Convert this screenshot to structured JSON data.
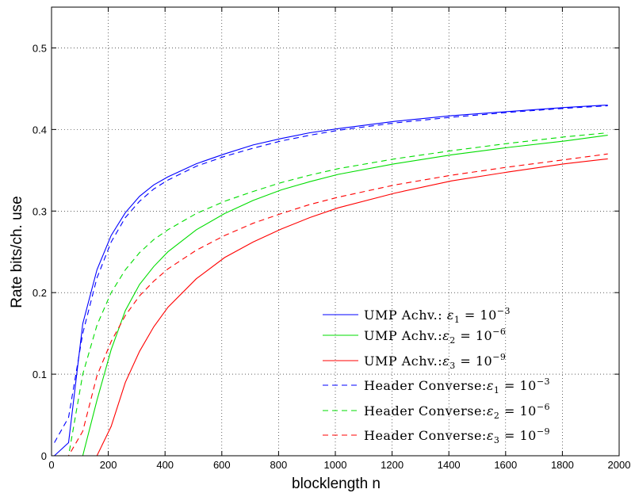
{
  "chart_data": {
    "type": "line",
    "title": "",
    "xlabel": "blocklength n",
    "ylabel": "Rate bits/ch. use",
    "xlim": [
      0,
      2000
    ],
    "ylim": [
      0,
      0.55
    ],
    "xticks": [
      0,
      200,
      400,
      600,
      800,
      1000,
      1200,
      1400,
      1600,
      1800,
      2000
    ],
    "yticks": [
      0,
      0.1,
      0.2,
      0.3,
      0.4,
      0.5
    ],
    "xtick_labels": [
      "0",
      "200",
      "400",
      "600",
      "800",
      "1000",
      "1200",
      "1400",
      "1600",
      "1800",
      "2000"
    ],
    "ytick_labels": [
      "0",
      "0.1",
      "0.2",
      "0.3",
      "0.4",
      "0.5"
    ],
    "grid": true,
    "legend_position": "bottom-right",
    "series": [
      {
        "name": "UMP Achv.: ε1 = 10^-3",
        "color": "#0000ff",
        "dash": "solid",
        "x": [
          10,
          60,
          110,
          160,
          210,
          260,
          310,
          360,
          410,
          510,
          610,
          710,
          810,
          910,
          1010,
          1210,
          1410,
          1610,
          1810,
          1960
        ],
        "y": [
          0.0,
          0.016,
          0.162,
          0.228,
          0.27,
          0.298,
          0.318,
          0.332,
          0.342,
          0.358,
          0.37,
          0.381,
          0.389,
          0.396,
          0.401,
          0.41,
          0.417,
          0.422,
          0.427,
          0.43
        ]
      },
      {
        "name": "UMP Achv.:ε2 = 10^-6",
        "color": "#00dd00",
        "dash": "solid",
        "x": [
          10,
          110,
          160,
          210,
          260,
          310,
          360,
          410,
          510,
          610,
          710,
          810,
          910,
          1010,
          1210,
          1410,
          1610,
          1810,
          1960
        ],
        "y": [
          0.0,
          0.0,
          0.068,
          0.13,
          0.178,
          0.21,
          0.232,
          0.25,
          0.277,
          0.297,
          0.313,
          0.326,
          0.336,
          0.345,
          0.358,
          0.369,
          0.378,
          0.386,
          0.393
        ]
      },
      {
        "name": "UMP Achv.:ε3 = 10^-9",
        "color": "#ff0000",
        "dash": "solid",
        "x": [
          10,
          160,
          210,
          260,
          310,
          360,
          410,
          510,
          610,
          710,
          810,
          910,
          1010,
          1210,
          1410,
          1610,
          1810,
          1960
        ],
        "y": [
          0.0,
          0.0,
          0.036,
          0.09,
          0.128,
          0.158,
          0.182,
          0.217,
          0.243,
          0.262,
          0.278,
          0.292,
          0.304,
          0.322,
          0.337,
          0.348,
          0.358,
          0.364
        ]
      },
      {
        "name": "Header Converse:ε1 = 10^-3",
        "color": "#0000ff",
        "dash": "dashed",
        "x": [
          10,
          60,
          110,
          160,
          210,
          260,
          310,
          360,
          410,
          510,
          610,
          710,
          810,
          910,
          1010,
          1210,
          1410,
          1610,
          1810,
          1960
        ],
        "y": [
          0.016,
          0.047,
          0.15,
          0.218,
          0.262,
          0.292,
          0.312,
          0.327,
          0.338,
          0.355,
          0.367,
          0.377,
          0.386,
          0.393,
          0.399,
          0.408,
          0.415,
          0.421,
          0.426,
          0.429
        ]
      },
      {
        "name": "Header Converse:ε2 = 10^-6",
        "color": "#00dd00",
        "dash": "dashed",
        "x": [
          10,
          60,
          110,
          160,
          210,
          260,
          310,
          360,
          410,
          510,
          610,
          710,
          810,
          910,
          1010,
          1210,
          1410,
          1610,
          1810,
          1960
        ],
        "y": [
          0.0,
          0.0,
          0.1,
          0.16,
          0.2,
          0.228,
          0.249,
          0.265,
          0.277,
          0.297,
          0.312,
          0.324,
          0.335,
          0.344,
          0.352,
          0.364,
          0.374,
          0.383,
          0.391,
          0.396
        ]
      },
      {
        "name": "Header Converse:ε3 = 10^-9",
        "color": "#ff0000",
        "dash": "dashed",
        "x": [
          10,
          60,
          110,
          160,
          210,
          260,
          310,
          360,
          410,
          510,
          610,
          710,
          810,
          910,
          1010,
          1210,
          1410,
          1610,
          1810,
          1960
        ],
        "y": [
          0.0,
          0.0,
          0.03,
          0.098,
          0.14,
          0.172,
          0.196,
          0.214,
          0.229,
          0.252,
          0.27,
          0.285,
          0.297,
          0.308,
          0.317,
          0.332,
          0.344,
          0.354,
          0.363,
          0.37
        ]
      }
    ]
  }
}
